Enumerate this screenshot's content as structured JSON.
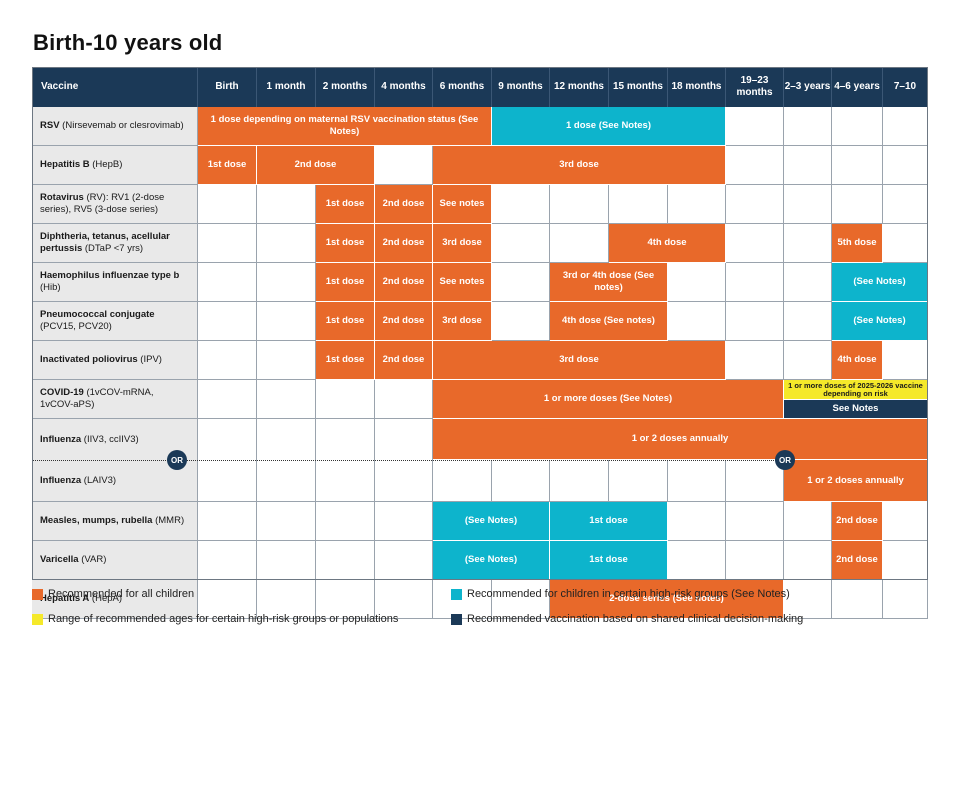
{
  "title": "Birth-10 years old",
  "colors": {
    "orange": "#e8692a",
    "teal": "#0db4cc",
    "yellow": "#f5e92a",
    "navy": "#1b3957"
  },
  "columns": [
    "Vaccine",
    "Birth",
    "1 month",
    "2 months",
    "4 months",
    "6 months",
    "9 months",
    "12 months",
    "15 months",
    "18 months",
    "19–23 months",
    "2–3 years",
    "4–6 years",
    "7–10"
  ],
  "rows": [
    {
      "name": "RSV",
      "detail": "(Nirsevemab or clesrovimab)",
      "segments": [
        {
          "from": 1,
          "to": 5,
          "color": "orange",
          "text": "1 dose depending on maternal RSV vaccination status (See Notes)"
        },
        {
          "from": 6,
          "to": 9,
          "color": "teal",
          "text": "1 dose (See Notes)"
        }
      ]
    },
    {
      "name": "Hepatitis B",
      "detail": "(HepB)",
      "segments": [
        {
          "from": 1,
          "to": 1,
          "color": "orange",
          "text": "1st dose"
        },
        {
          "from": 2,
          "to": 3,
          "color": "orange",
          "text": "2nd dose"
        },
        {
          "from": 5,
          "to": 9,
          "color": "orange",
          "text": "3rd dose"
        }
      ]
    },
    {
      "name": "Rotavirus",
      "detail": "(RV): RV1 (2-dose series), RV5 (3-dose series)",
      "segments": [
        {
          "from": 3,
          "to": 3,
          "color": "orange",
          "text": "1st dose"
        },
        {
          "from": 4,
          "to": 4,
          "color": "orange",
          "text": "2nd dose"
        },
        {
          "from": 5,
          "to": 5,
          "color": "orange",
          "text": "See notes"
        }
      ]
    },
    {
      "name": "Diphtheria, tetanus, acellular pertussis",
      "detail": "(DTaP <7 yrs)",
      "segments": [
        {
          "from": 3,
          "to": 3,
          "color": "orange",
          "text": "1st dose"
        },
        {
          "from": 4,
          "to": 4,
          "color": "orange",
          "text": "2nd dose"
        },
        {
          "from": 5,
          "to": 5,
          "color": "orange",
          "text": "3rd dose"
        },
        {
          "from": 8,
          "to": 9,
          "color": "orange",
          "text": "4th dose"
        },
        {
          "from": 12,
          "to": 12,
          "color": "orange",
          "text": "5th dose"
        }
      ]
    },
    {
      "name": "Haemophilus influenzae type b",
      "detail": "(Hib)",
      "segments": [
        {
          "from": 3,
          "to": 3,
          "color": "orange",
          "text": "1st dose"
        },
        {
          "from": 4,
          "to": 4,
          "color": "orange",
          "text": "2nd dose"
        },
        {
          "from": 5,
          "to": 5,
          "color": "orange",
          "text": "See notes"
        },
        {
          "from": 7,
          "to": 8,
          "color": "orange",
          "text": "3rd or 4th dose (See notes)"
        },
        {
          "from": 12,
          "to": 13,
          "color": "teal",
          "text": "(See Notes)"
        }
      ]
    },
    {
      "name": "Pneumococcal conjugate",
      "detail": "(PCV15, PCV20)",
      "segments": [
        {
          "from": 3,
          "to": 3,
          "color": "orange",
          "text": "1st dose"
        },
        {
          "from": 4,
          "to": 4,
          "color": "orange",
          "text": "2nd dose"
        },
        {
          "from": 5,
          "to": 5,
          "color": "orange",
          "text": "3rd dose"
        },
        {
          "from": 7,
          "to": 8,
          "color": "orange",
          "text": "4th dose (See notes)"
        },
        {
          "from": 12,
          "to": 13,
          "color": "teal",
          "text": "(See Notes)"
        }
      ]
    },
    {
      "name": "Inactivated poliovirus",
      "detail": "(IPV)",
      "segments": [
        {
          "from": 3,
          "to": 3,
          "color": "orange",
          "text": "1st dose"
        },
        {
          "from": 4,
          "to": 4,
          "color": "orange",
          "text": "2nd dose"
        },
        {
          "from": 5,
          "to": 9,
          "color": "orange",
          "text": "3rd dose"
        },
        {
          "from": 12,
          "to": 12,
          "color": "orange",
          "text": "4th dose"
        }
      ]
    },
    {
      "name": "COVID-19",
      "detail": "(1vCOV-mRNA, 1vCOV-aPS)",
      "segments": [
        {
          "from": 5,
          "to": 10,
          "color": "orange",
          "text": "1 or more doses (See Notes)"
        }
      ],
      "covid_yellow": "1 or more doses of 2025-2026 vaccine depending on risk",
      "covid_navy": "See Notes"
    },
    {
      "name": "Influenza",
      "detail": "(IIV3, ccIIV3)",
      "alt_name": "Influenza",
      "alt_detail": "(LAIV3)",
      "flu_text": "1 or 2 doses annually",
      "laiv_text": "1 or 2 doses annually",
      "or_label": "OR"
    },
    {
      "name": "Measles, mumps, rubella",
      "detail": "(MMR)",
      "segments": [
        {
          "from": 5,
          "to": 6,
          "color": "teal",
          "text": "(See Notes)"
        },
        {
          "from": 7,
          "to": 8,
          "color": "teal",
          "text": "1st dose"
        },
        {
          "from": 12,
          "to": 12,
          "color": "orange",
          "text": "2nd dose"
        }
      ]
    },
    {
      "name": "Varicella",
      "detail": "(VAR)",
      "segments": [
        {
          "from": 5,
          "to": 6,
          "color": "teal",
          "text": "(See Notes)"
        },
        {
          "from": 7,
          "to": 8,
          "color": "teal",
          "text": "1st dose"
        },
        {
          "from": 12,
          "to": 12,
          "color": "orange",
          "text": "2nd dose"
        }
      ]
    },
    {
      "name": "Hepatitis A",
      "detail": "(HepA)",
      "segments": [
        {
          "from": 7,
          "to": 10,
          "color": "orange",
          "text": "2-dose series (See notes)"
        }
      ]
    }
  ],
  "legend": [
    {
      "color": "orange",
      "text": "Recommended for all children"
    },
    {
      "color": "teal",
      "text": "Recommended for children in certain high-risk groups (See Notes)"
    },
    {
      "color": "yellow",
      "text": "Range of recommended ages for certain high-risk groups or populations"
    },
    {
      "color": "navy",
      "text": "Recommended vaccination based on shared clinical decision-making"
    }
  ]
}
